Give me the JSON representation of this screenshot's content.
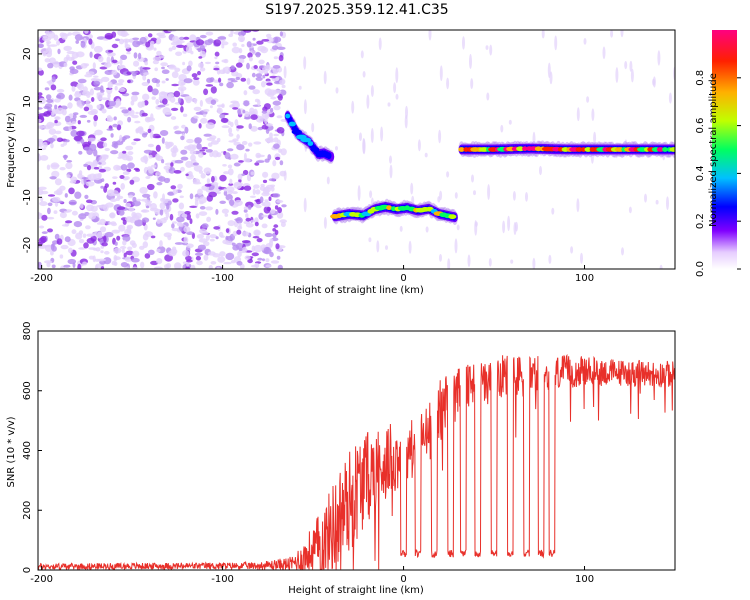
{
  "title": "S197.2025.359.12.41.C35",
  "chart_data": [
    {
      "type": "heatmap",
      "name": "spectrogram",
      "xlabel": "Height of straight line (km)",
      "ylabel": "Frequency (Hz)",
      "xlim": [
        -202,
        150
      ],
      "ylim": [
        -25,
        25
      ],
      "xticks": [
        -200,
        -100,
        0,
        100
      ],
      "yticks": [
        -20,
        -10,
        0,
        10,
        20
      ],
      "colorbar": {
        "label": "Normalized spectral amplitude",
        "range": [
          0,
          1
        ],
        "ticks": [
          0.0,
          0.2,
          0.4,
          0.6,
          0.8
        ],
        "tick_labels": [
          "0.0",
          "0.2",
          "0.4",
          "0.6",
          "0.8"
        ],
        "colors": [
          "#ffffff",
          "#e6ccff",
          "#8000ff",
          "#0000ff",
          "#00c0ff",
          "#00ff60",
          "#c0ff00",
          "#ffb000",
          "#ff2000",
          "#ff0080"
        ]
      },
      "tracks": [
        {
          "x": [
            -64,
            -58,
            -52,
            -47,
            -44,
            -40
          ],
          "freq": [
            7,
            3,
            1.5,
            -1,
            -0.8,
            -1.5
          ],
          "amplitude": 0.45
        },
        {
          "x": [
            -38,
            -30,
            -22,
            -16,
            -10,
            -4,
            2,
            8,
            14,
            20,
            26,
            29
          ],
          "freq": [
            -14,
            -13.5,
            -13.8,
            -12.5,
            -12,
            -12.5,
            -12.2,
            -12.8,
            -12.4,
            -13.5,
            -14,
            -14.2
          ],
          "amplitude": 0.7
        },
        {
          "x": [
            32,
            50,
            70,
            90,
            110,
            130,
            150
          ],
          "freq": [
            0,
            0,
            0.2,
            0,
            0,
            0,
            0
          ],
          "amplitude": 0.95
        }
      ],
      "noise_region_x": [
        -202,
        -66
      ]
    },
    {
      "type": "line",
      "name": "snr",
      "xlabel": "Height of straight line (km)",
      "ylabel": "SNR (10 * v/v)",
      "xlim": [
        -202,
        150
      ],
      "ylim": [
        0,
        800
      ],
      "xticks": [
        -200,
        -100,
        0,
        100
      ],
      "yticks": [
        0,
        200,
        400,
        600,
        800
      ],
      "color": "#e8302a",
      "envelope": {
        "x": [
          -202,
          -80,
          -62,
          -55,
          -45,
          -35,
          -28,
          -22,
          -15,
          -8,
          0,
          8,
          15,
          22,
          30,
          40,
          55,
          70,
          85,
          100,
          120,
          150
        ],
        "base": [
          12,
          14,
          20,
          40,
          90,
          180,
          250,
          300,
          340,
          370,
          390,
          420,
          470,
          560,
          590,
          620,
          640,
          650,
          660,
          665,
          660,
          655
        ],
        "amp": [
          10,
          12,
          25,
          60,
          120,
          170,
          180,
          160,
          140,
          120,
          110,
          100,
          100,
          110,
          90,
          80,
          80,
          70,
          60,
          50,
          45,
          45
        ]
      },
      "dropouts": [
        0,
        8,
        17,
        26,
        33,
        41,
        50,
        59,
        68,
        76,
        82
      ],
      "dropout_level": 55
    }
  ]
}
